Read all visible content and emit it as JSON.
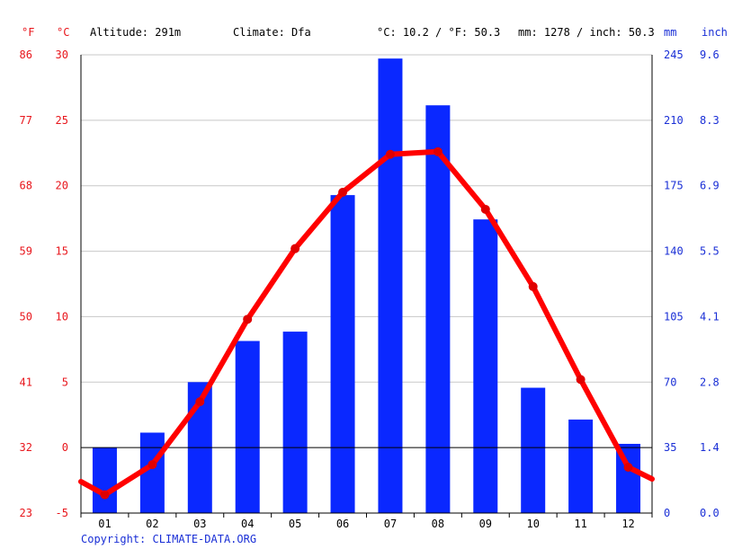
{
  "header": {
    "altitude": "Altitude: 291m",
    "climate": "Climate: Dfa",
    "avg_temp": "°C: 10.2 / °F: 50.3",
    "precip": "mm: 1278 / inch: 50.3"
  },
  "copyright": "Copyright: CLIMATE-DATA.ORG",
  "colors": {
    "temp": "#ff0000",
    "precip": "#0a28ff",
    "temp_text": "#e8151b",
    "precip_text": "#1a2fd6"
  },
  "chart_data": {
    "type": "bar",
    "categories": [
      "01",
      "02",
      "03",
      "04",
      "05",
      "06",
      "07",
      "08",
      "09",
      "10",
      "11",
      "12"
    ],
    "series": [
      {
        "type": "bar",
        "axis": "right",
        "unit": "mm",
        "values": [
          35,
          43,
          70,
          92,
          97,
          170,
          243,
          218,
          157,
          67,
          50,
          37
        ]
      },
      {
        "type": "line",
        "axis": "left",
        "unit": "°C",
        "values": [
          -3.6,
          -1.3,
          3.5,
          9.8,
          15.2,
          19.5,
          22.4,
          22.6,
          18.2,
          12.3,
          5.2,
          -1.5
        ]
      }
    ],
    "line_ends": [
      -2.6,
      -2.4
    ],
    "axes": {
      "left_c": {
        "label": "°C",
        "ticks": [
          "30",
          "25",
          "20",
          "15",
          "10",
          "5",
          "0",
          "-5"
        ],
        "range": [
          -5,
          30
        ]
      },
      "left_f": {
        "label": "°F",
        "ticks": [
          "86",
          "77",
          "68",
          "59",
          "50",
          "41",
          "32",
          "23"
        ]
      },
      "right_mm": {
        "label": "mm",
        "ticks": [
          "245",
          "210",
          "175",
          "140",
          "105",
          "70",
          "35",
          "0"
        ],
        "range": [
          0,
          245
        ]
      },
      "right_inch": {
        "label": "inch",
        "ticks": [
          "9.6",
          "8.3",
          "6.9",
          "5.5",
          "4.1",
          "2.8",
          "1.4",
          "0.0"
        ]
      }
    },
    "grid": true
  }
}
